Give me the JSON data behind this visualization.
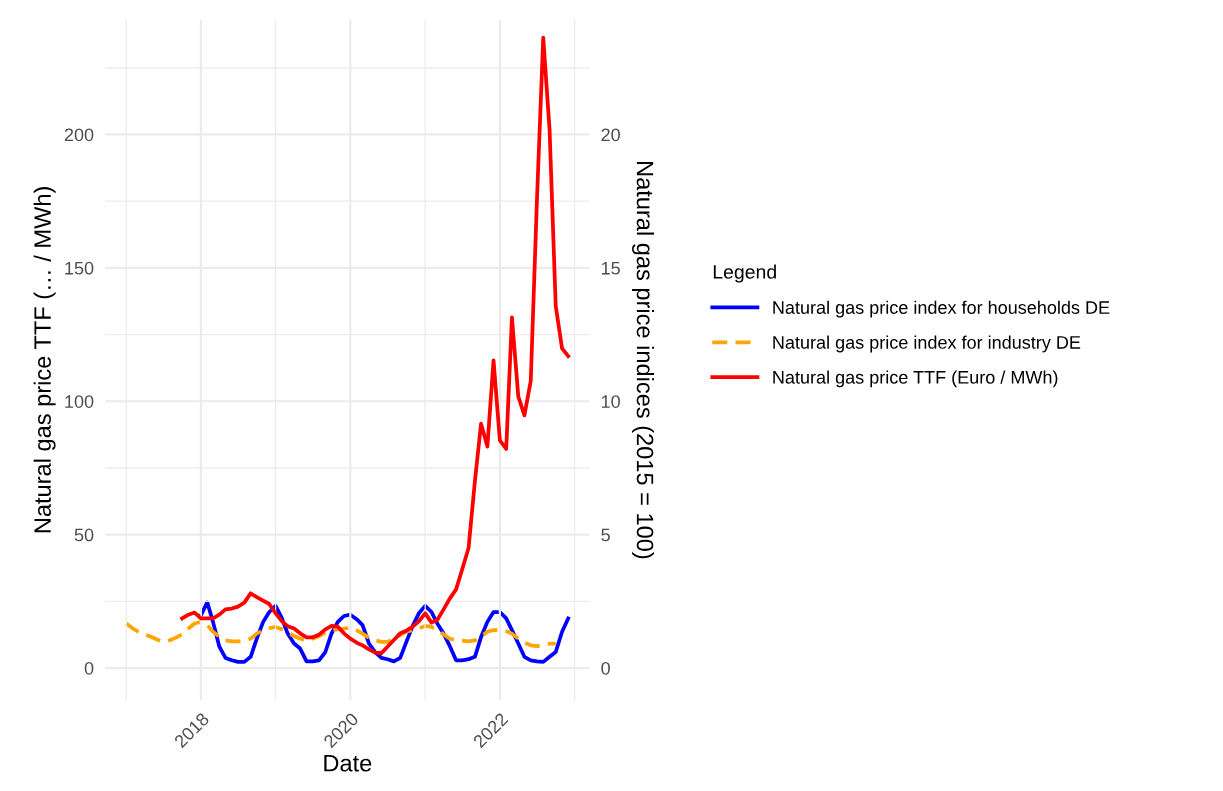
{
  "chart_data": {
    "type": "line",
    "xlabel": "Date",
    "ylabel": "Natural gas price TTF (… / MWh)",
    "y2label": "Natural gas price indices (2015 = 100)",
    "legend_title": "Legend",
    "legend": "right",
    "grid": true,
    "xlim": [
      "2016-09-20",
      "2023-03-15"
    ],
    "xticks": [
      {
        "value": "2017",
        "label": null
      },
      {
        "value": "2018",
        "label": "2018"
      },
      {
        "value": "2019",
        "label": null
      },
      {
        "value": "2020",
        "label": "2020"
      },
      {
        "value": "2021",
        "label": null
      },
      {
        "value": "2022",
        "label": "2022"
      },
      {
        "value": "2023",
        "label": null
      }
    ],
    "ylim": [
      -12,
      243
    ],
    "yticks": [
      0,
      {
        "value": 25,
        "label": null
      },
      50,
      {
        "value": 75,
        "label": null
      },
      100,
      {
        "value": 125,
        "label": null
      },
      150,
      {
        "value": 175,
        "label": null
      },
      200,
      {
        "value": 225,
        "label": null
      }
    ],
    "y2lim": [
      -1.2,
      24.3
    ],
    "y2ticks": [
      0,
      5,
      10,
      15,
      20
    ],
    "series": [
      {
        "name": "Natural gas price index for households DE",
        "color": "#0000ff",
        "axis": "y2",
        "line_style": "solid",
        "x": [
          "2018-01",
          "2018-02",
          "2018-03",
          "2018-04",
          "2018-05",
          "2018-06",
          "2018-07",
          "2018-08",
          "2018-09",
          "2018-10",
          "2018-11",
          "2018-12",
          "2019-01",
          "2019-02",
          "2019-03",
          "2019-04",
          "2019-05",
          "2019-06",
          "2019-07",
          "2019-08",
          "2019-09",
          "2019-10",
          "2019-11",
          "2019-12",
          "2020-01",
          "2020-02",
          "2020-03",
          "2020-04",
          "2020-05",
          "2020-06",
          "2020-07",
          "2020-08",
          "2020-09",
          "2020-10",
          "2020-11",
          "2020-12",
          "2021-01",
          "2021-02",
          "2021-03",
          "2021-04",
          "2021-05",
          "2021-06",
          "2021-07",
          "2021-08",
          "2021-09",
          "2021-10",
          "2021-11",
          "2021-12",
          "2022-01",
          "2022-02",
          "2022-03",
          "2022-04",
          "2022-05",
          "2022-06",
          "2022-07",
          "2022-08",
          "2022-09",
          "2022-10",
          "2022-11",
          "2022-12"
        ],
        "values": [
          1.98,
          2.46,
          1.73,
          0.8,
          0.38,
          0.29,
          0.23,
          0.23,
          0.42,
          1.1,
          1.73,
          2.1,
          2.33,
          1.86,
          1.29,
          0.92,
          0.73,
          0.25,
          0.25,
          0.29,
          0.6,
          1.29,
          1.73,
          1.95,
          2.0,
          1.83,
          1.61,
          0.92,
          0.6,
          0.38,
          0.33,
          0.25,
          0.38,
          0.98,
          1.58,
          2.05,
          2.33,
          2.1,
          1.67,
          1.29,
          0.83,
          0.29,
          0.29,
          0.33,
          0.42,
          1.16,
          1.73,
          2.1,
          2.1,
          1.86,
          1.42,
          0.92,
          0.42,
          0.29,
          0.25,
          0.23,
          0.42,
          0.6,
          1.36,
          1.86
        ]
      },
      {
        "name": "Natural gas price index for industry DE",
        "color": "#ffa500",
        "axis": "y2",
        "line_style": "dashed",
        "x": [
          "2017-01",
          "2017-02",
          "2017-03",
          "2017-04",
          "2017-05",
          "2017-06",
          "2017-07",
          "2017-08",
          "2017-09",
          "2017-10",
          "2017-11",
          "2017-12",
          "2018-01",
          "2018-02",
          "2018-03",
          "2018-04",
          "2018-05",
          "2018-06",
          "2018-07",
          "2018-08",
          "2018-09",
          "2018-10",
          "2018-11",
          "2018-12",
          "2019-01",
          "2019-02",
          "2019-03",
          "2019-04",
          "2019-05",
          "2019-06",
          "2019-07",
          "2019-08",
          "2019-09",
          "2019-10",
          "2019-11",
          "2019-12",
          "2020-01",
          "2020-02",
          "2020-03",
          "2020-04",
          "2020-05",
          "2020-06",
          "2020-07",
          "2020-08",
          "2020-09",
          "2020-10",
          "2020-11",
          "2020-12",
          "2021-01",
          "2021-02",
          "2021-03",
          "2021-04",
          "2021-05",
          "2021-06",
          "2021-07",
          "2021-08",
          "2021-09",
          "2021-10",
          "2021-11",
          "2021-12",
          "2022-01",
          "2022-02",
          "2022-03",
          "2022-04",
          "2022-05",
          "2022-06",
          "2022-07",
          "2022-08",
          "2022-09",
          "2022-10"
        ],
        "values": [
          1.67,
          1.49,
          1.36,
          1.26,
          1.17,
          1.07,
          0.98,
          1.04,
          1.14,
          1.26,
          1.48,
          1.67,
          1.73,
          1.61,
          1.36,
          1.17,
          1.04,
          1.0,
          1.0,
          1.03,
          1.1,
          1.29,
          1.42,
          1.49,
          1.54,
          1.45,
          1.33,
          1.2,
          1.1,
          1.04,
          1.1,
          1.2,
          1.33,
          1.41,
          1.45,
          1.48,
          1.51,
          1.42,
          1.29,
          1.13,
          1.04,
          0.98,
          0.98,
          1.1,
          1.23,
          1.36,
          1.42,
          1.48,
          1.58,
          1.54,
          1.42,
          1.26,
          1.1,
          1.04,
          1.03,
          1.0,
          1.04,
          1.17,
          1.36,
          1.42,
          1.42,
          1.38,
          1.29,
          1.1,
          0.95,
          0.85,
          0.82,
          0.85,
          0.91,
          0.91
        ]
      },
      {
        "name": "Natural gas price TTF (Euro / MWh)",
        "color": "#ff0000",
        "line_style": "solid",
        "x": [
          "2017-10",
          "2017-11",
          "2017-12",
          "2018-01",
          "2018-02",
          "2018-03",
          "2018-04",
          "2018-05",
          "2018-06",
          "2018-07",
          "2018-08",
          "2018-09",
          "2018-10",
          "2018-11",
          "2018-12",
          "2019-01",
          "2019-02",
          "2019-03",
          "2019-04",
          "2019-05",
          "2019-06",
          "2019-07",
          "2019-08",
          "2019-09",
          "2019-10",
          "2019-11",
          "2019-12",
          "2020-01",
          "2020-02",
          "2020-03",
          "2020-04",
          "2020-05",
          "2020-06",
          "2020-07",
          "2020-08",
          "2020-09",
          "2020-10",
          "2020-11",
          "2020-12",
          "2021-01",
          "2021-02",
          "2021-03",
          "2021-04",
          "2021-05",
          "2021-06",
          "2021-07",
          "2021-08",
          "2021-09",
          "2021-10",
          "2021-11",
          "2021-12",
          "2022-01",
          "2022-02",
          "2022-03",
          "2022-04",
          "2022-05",
          "2022-06",
          "2022-07",
          "2022-08",
          "2022-09",
          "2022-10",
          "2022-11",
          "2022-12"
        ],
        "values": [
          18.6,
          20.0,
          20.8,
          18.6,
          18.6,
          18.6,
          20.0,
          22.0,
          22.3,
          23.0,
          24.5,
          28.0,
          26.6,
          25.3,
          24.0,
          20.5,
          17.5,
          15.7,
          14.8,
          13.0,
          11.5,
          11.5,
          12.5,
          14.5,
          15.8,
          15.5,
          13.0,
          11.0,
          9.5,
          8.5,
          7.0,
          5.8,
          5.6,
          8.0,
          10.5,
          13.0,
          14.0,
          15.5,
          17.5,
          20.5,
          17.0,
          18.0,
          22.0,
          26.0,
          29.5,
          37.0,
          45.0,
          70.0,
          91.6,
          83.0,
          115.3,
          85.3,
          82.1,
          131.4,
          101.8,
          94.7,
          107.7,
          175.0,
          236.3,
          201.6,
          135.7,
          119.8,
          116.9
        ]
      }
    ]
  }
}
